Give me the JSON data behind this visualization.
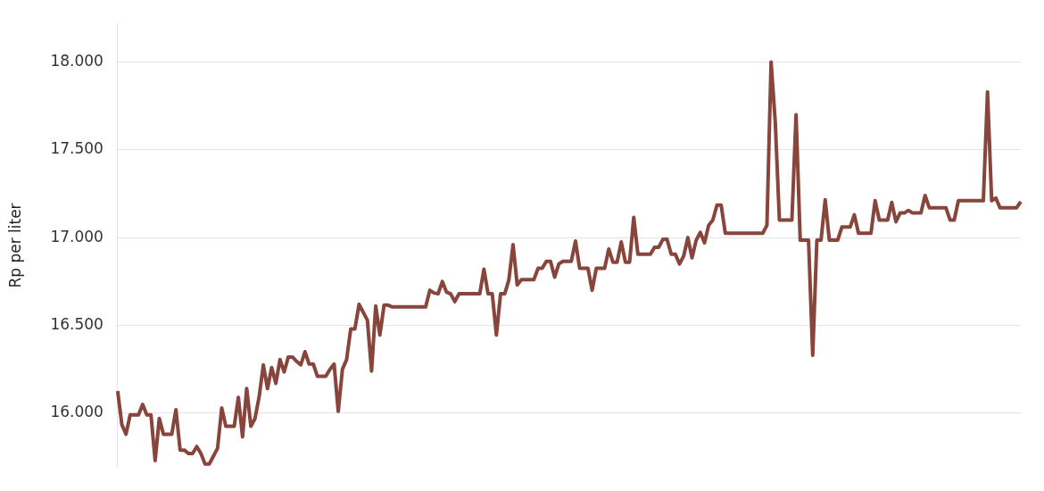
{
  "chart_data": {
    "type": "line",
    "ylabel": "Rp per liter",
    "categories": [
      null,
      null,
      null,
      null,
      null,
      null,
      null,
      null,
      null,
      null,
      null,
      null,
      null,
      null,
      null,
      null,
      null,
      null,
      null,
      null,
      null,
      null,
      null,
      null,
      null,
      null,
      null,
      null,
      null,
      null,
      null,
      null,
      null,
      null,
      null,
      null,
      null,
      null,
      null,
      null,
      null,
      null,
      null,
      null,
      null,
      null,
      null,
      null,
      null,
      null,
      null,
      null,
      null,
      null,
      null,
      null,
      null,
      null,
      null,
      null,
      null,
      null,
      null,
      null,
      null,
      null,
      null,
      null,
      null,
      null,
      null,
      null,
      null,
      null,
      null,
      null,
      null,
      null,
      null,
      null,
      null,
      null,
      null,
      null,
      null,
      null,
      null,
      null,
      null,
      null,
      null,
      null,
      null,
      null,
      null,
      null,
      null,
      null,
      null,
      null,
      null,
      null,
      null,
      null,
      null,
      null,
      null,
      null,
      null,
      null,
      null,
      null,
      null,
      null,
      null,
      null,
      null,
      null,
      null,
      null,
      null,
      null,
      null,
      null,
      null,
      null,
      null,
      null,
      null,
      null,
      null,
      null,
      null,
      null,
      null,
      null,
      null,
      null,
      null,
      null,
      null,
      null,
      null,
      null,
      null,
      null,
      null,
      null,
      null,
      null,
      null,
      null,
      null,
      null,
      null,
      null,
      null,
      null,
      null,
      null,
      null,
      null,
      null,
      null,
      null,
      null,
      null,
      null,
      null,
      null,
      null,
      null,
      null,
      null,
      null,
      null,
      null,
      null,
      null,
      null,
      null,
      null,
      null,
      null,
      null,
      null,
      null,
      null,
      null,
      null,
      null,
      null,
      null,
      null,
      null,
      null,
      null,
      null,
      null,
      null,
      null,
      null,
      null,
      null,
      null,
      null,
      null,
      null,
      null,
      null,
      null,
      null,
      null,
      null,
      null,
      null,
      null,
      null
    ],
    "series": [
      {
        "color": "#87453b",
        "values": [
          16126,
          15935,
          15880,
          15990,
          15990,
          15990,
          16050,
          15990,
          15990,
          15730,
          15970,
          15880,
          15880,
          15880,
          16020,
          15790,
          15790,
          15770,
          15770,
          15810,
          15770,
          15710,
          15710,
          15755,
          15800,
          16030,
          15925,
          15925,
          15925,
          16090,
          15865,
          16140,
          15925,
          15970,
          16095,
          16275,
          16140,
          16260,
          16170,
          16305,
          16235,
          16320,
          16320,
          16295,
          16275,
          16350,
          16280,
          16280,
          16210,
          16210,
          16210,
          16250,
          16280,
          16010,
          16250,
          16305,
          16480,
          16480,
          16620,
          16575,
          16530,
          16240,
          16610,
          16445,
          16615,
          16615,
          16605,
          16605,
          16605,
          16605,
          16605,
          16605,
          16605,
          16605,
          16605,
          16700,
          16685,
          16680,
          16750,
          16690,
          16680,
          16635,
          16680,
          16680,
          16680,
          16680,
          16680,
          16680,
          16820,
          16680,
          16680,
          16445,
          16680,
          16680,
          16760,
          16960,
          16730,
          16760,
          16760,
          16760,
          16760,
          16825,
          16825,
          16865,
          16865,
          16775,
          16850,
          16865,
          16865,
          16865,
          16980,
          16825,
          16825,
          16825,
          16700,
          16825,
          16825,
          16825,
          16935,
          16860,
          16860,
          16975,
          16860,
          16860,
          17115,
          16905,
          16905,
          16905,
          16905,
          16945,
          16945,
          16990,
          16990,
          16905,
          16905,
          16850,
          16895,
          17000,
          16885,
          16985,
          17030,
          16970,
          17070,
          17100,
          17185,
          17185,
          17025,
          17025,
          17025,
          17025,
          17025,
          17025,
          17025,
          17025,
          17025,
          17025,
          17070,
          18000,
          17660,
          17100,
          17100,
          17100,
          17100,
          17700,
          16985,
          16985,
          16985,
          16330,
          16985,
          16985,
          17215,
          16985,
          16985,
          16985,
          17060,
          17060,
          17060,
          17130,
          17025,
          17025,
          17025,
          17025,
          17210,
          17100,
          17100,
          17100,
          17200,
          17090,
          17140,
          17140,
          17155,
          17140,
          17140,
          17140,
          17240,
          17170,
          17170,
          17170,
          17170,
          17170,
          17100,
          17100,
          17210,
          17210,
          17210,
          17210,
          17210,
          17210,
          17210,
          17830,
          17210,
          17225,
          17170,
          17170,
          17170,
          17170,
          17170,
          17205
        ]
      }
    ],
    "ylim": [
      15690,
      18220
    ],
    "yticks": [
      {
        "value": 16000,
        "label": "16.000"
      },
      {
        "value": 16500,
        "label": "16.500"
      },
      {
        "value": 17000,
        "label": "17.000"
      },
      {
        "value": 17500,
        "label": "17.500"
      },
      {
        "value": 18000,
        "label": "18.000"
      }
    ],
    "grid": "y",
    "tick_labels": "y"
  }
}
